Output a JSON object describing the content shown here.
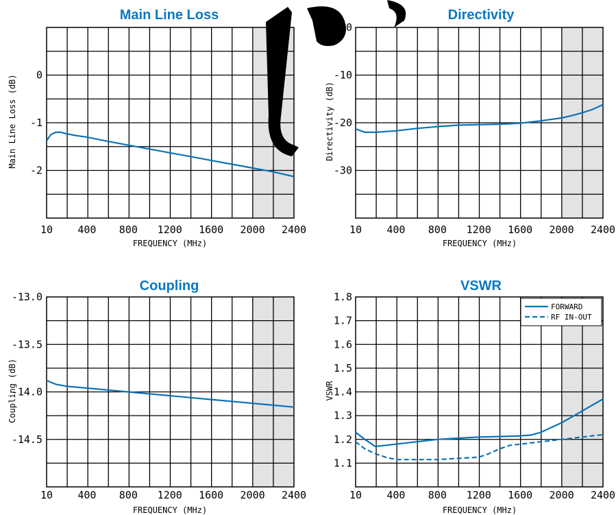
{
  "colors": {
    "series": "#0a73b6",
    "title": "#0a78c2",
    "shade": "#e3e3e3"
  },
  "watermark": "JBS",
  "chart_data": [
    {
      "id": "mll",
      "type": "line",
      "title": "Main Line Loss",
      "xlabel": "FREQUENCY (MHz)",
      "ylabel": "Main Line Loss (dB)",
      "xlim": [
        10,
        2400
      ],
      "ylim": [
        -3,
        1
      ],
      "grid": true,
      "shaded_range": [
        2000,
        2400
      ],
      "xticks": [
        {
          "v": 10,
          "t": "10"
        },
        {
          "v": 400,
          "t": "400"
        },
        {
          "v": 800,
          "t": "800"
        },
        {
          "v": 1200,
          "t": "1200"
        },
        {
          "v": 1600,
          "t": "1600"
        },
        {
          "v": 2000,
          "t": "2000"
        },
        {
          "v": 2400,
          "t": "2400"
        }
      ],
      "yticks": [
        {
          "v": 0,
          "t": "0"
        },
        {
          "v": -1,
          "t": "-1"
        },
        {
          "v": -2,
          "t": "-2"
        }
      ],
      "series": [
        {
          "style": "solid",
          "x": [
            10,
            50,
            100,
            150,
            200,
            300,
            400,
            600,
            800,
            1000,
            1200,
            1400,
            1600,
            1800,
            2000,
            2200,
            2400
          ],
          "y": [
            -1.38,
            -1.25,
            -1.2,
            -1.2,
            -1.23,
            -1.27,
            -1.3,
            -1.39,
            -1.47,
            -1.55,
            -1.63,
            -1.71,
            -1.79,
            -1.87,
            -1.95,
            -2.03,
            -2.13
          ]
        }
      ]
    },
    {
      "id": "dir",
      "type": "line",
      "title": "Directivity",
      "xlabel": "FREQUENCY (MHz)",
      "ylabel": "Directivity (dB)",
      "xlim": [
        10,
        2400
      ],
      "ylim": [
        -40,
        0
      ],
      "grid": true,
      "shaded_range": [
        2000,
        2400
      ],
      "xticks": [
        {
          "v": 10,
          "t": "10"
        },
        {
          "v": 400,
          "t": "400"
        },
        {
          "v": 800,
          "t": "800"
        },
        {
          "v": 1200,
          "t": "1200"
        },
        {
          "v": 1600,
          "t": "1600"
        },
        {
          "v": 2000,
          "t": "2000"
        },
        {
          "v": 2400,
          "t": "2400"
        }
      ],
      "yticks": [
        {
          "v": 0,
          "t": "0"
        },
        {
          "v": -10,
          "t": "-10"
        },
        {
          "v": -20,
          "t": "-20"
        },
        {
          "v": -30,
          "t": "-30"
        }
      ],
      "series": [
        {
          "style": "solid",
          "x": [
            10,
            100,
            200,
            400,
            600,
            800,
            1000,
            1200,
            1400,
            1600,
            1800,
            2000,
            2100,
            2200,
            2300,
            2400
          ],
          "y": [
            -21.3,
            -22,
            -22,
            -21.7,
            -21.2,
            -20.8,
            -20.5,
            -20.4,
            -20.3,
            -20.1,
            -19.6,
            -19,
            -18.5,
            -17.9,
            -17.2,
            -16.2
          ]
        }
      ]
    },
    {
      "id": "cpl",
      "type": "line",
      "title": "Coupling",
      "xlabel": "FREQUENCY (MHz)",
      "ylabel": "Coupling (dB)",
      "xlim": [
        10,
        2400
      ],
      "ylim": [
        -15,
        -13
      ],
      "grid": true,
      "shaded_range": [
        2000,
        2400
      ],
      "xticks": [
        {
          "v": 10,
          "t": "10"
        },
        {
          "v": 400,
          "t": "400"
        },
        {
          "v": 800,
          "t": "800"
        },
        {
          "v": 1200,
          "t": "1200"
        },
        {
          "v": 1600,
          "t": "1600"
        },
        {
          "v": 2000,
          "t": "2000"
        },
        {
          "v": 2400,
          "t": "2400"
        }
      ],
      "yticks": [
        {
          "v": -13,
          "t": "-13.0"
        },
        {
          "v": -13.5,
          "t": "-13.5"
        },
        {
          "v": -14,
          "t": "-14.0"
        },
        {
          "v": -14.5,
          "t": "-14.5"
        }
      ],
      "series": [
        {
          "style": "solid",
          "x": [
            10,
            100,
            200,
            400,
            600,
            800,
            1000,
            1200,
            1400,
            1600,
            1800,
            2000,
            2200,
            2400
          ],
          "y": [
            -13.88,
            -13.92,
            -13.94,
            -13.96,
            -13.98,
            -14.0,
            -14.02,
            -14.04,
            -14.06,
            -14.08,
            -14.1,
            -14.12,
            -14.14,
            -14.16
          ]
        }
      ]
    },
    {
      "id": "vswr",
      "type": "line",
      "title": "VSWR",
      "xlabel": "FREQUENCY (MHz)",
      "ylabel": "VSWR",
      "xlim": [
        10,
        2400
      ],
      "ylim": [
        1.0,
        1.8
      ],
      "grid": true,
      "shaded_range": [
        2000,
        2400
      ],
      "legend": "top-right",
      "xticks": [
        {
          "v": 10,
          "t": "10"
        },
        {
          "v": 400,
          "t": "400"
        },
        {
          "v": 800,
          "t": "800"
        },
        {
          "v": 1200,
          "t": "1200"
        },
        {
          "v": 1600,
          "t": "1600"
        },
        {
          "v": 2000,
          "t": "2000"
        },
        {
          "v": 2400,
          "t": "2400"
        }
      ],
      "yticks": [
        {
          "v": 1.8,
          "t": "1.8"
        },
        {
          "v": 1.7,
          "t": "1.7"
        },
        {
          "v": 1.6,
          "t": "1.6"
        },
        {
          "v": 1.5,
          "t": "1.5"
        },
        {
          "v": 1.4,
          "t": "1.4"
        },
        {
          "v": 1.3,
          "t": "1.3"
        },
        {
          "v": 1.2,
          "t": "1.2"
        },
        {
          "v": 1.1,
          "t": "1.1"
        }
      ],
      "series": [
        {
          "name": "FORWARD",
          "style": "solid",
          "x": [
            10,
            100,
            200,
            400,
            600,
            800,
            1000,
            1200,
            1400,
            1600,
            1700,
            1800,
            1900,
            2000,
            2100,
            2200,
            2300,
            2400
          ],
          "y": [
            1.23,
            1.2,
            1.17,
            1.18,
            1.19,
            1.2,
            1.205,
            1.21,
            1.212,
            1.215,
            1.218,
            1.23,
            1.25,
            1.27,
            1.295,
            1.32,
            1.345,
            1.37
          ]
        },
        {
          "name": "RF IN-OUT",
          "style": "dashed",
          "x": [
            10,
            100,
            200,
            300,
            400,
            600,
            800,
            1000,
            1200,
            1300,
            1400,
            1500,
            1600,
            1800,
            2000,
            2200,
            2400
          ],
          "y": [
            1.19,
            1.16,
            1.14,
            1.125,
            1.115,
            1.115,
            1.115,
            1.12,
            1.125,
            1.14,
            1.16,
            1.175,
            1.18,
            1.19,
            1.2,
            1.21,
            1.22
          ]
        }
      ]
    }
  ]
}
